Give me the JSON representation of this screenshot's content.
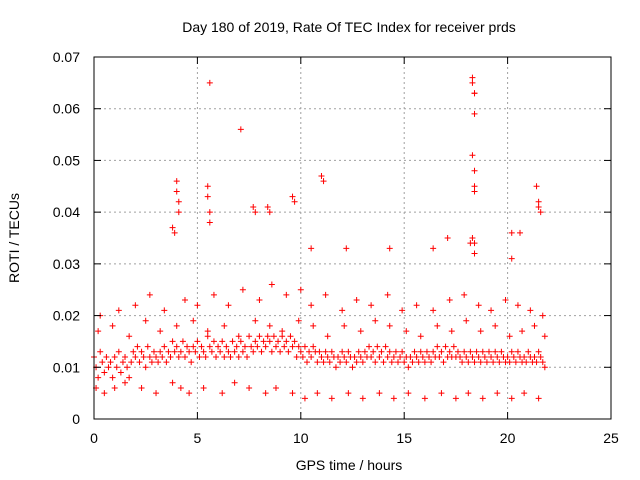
{
  "chart_data": {
    "type": "scatter",
    "title": "Day 180 of 2019, Rate Of TEC Index for receiver prds",
    "xlabel": "GPS time / hours",
    "ylabel": "ROTI / TECUs",
    "xlim": [
      0,
      25
    ],
    "ylim": [
      0,
      0.07
    ],
    "x_ticks": [
      "0",
      "5",
      "10",
      "15",
      "20",
      "25"
    ],
    "y_ticks": [
      "0",
      "0.01",
      "0.02",
      "0.03",
      "0.04",
      "0.05",
      "0.06",
      "0.07"
    ],
    "grid": true,
    "marker": "+",
    "series": [
      {
        "color": "#ff0000",
        "x": [
          0.0,
          0.1,
          0.2,
          0.3,
          0.4,
          0.5,
          0.6,
          0.7,
          0.8,
          0.9,
          1.0,
          1.1,
          1.2,
          1.3,
          1.4,
          1.5,
          1.6,
          1.7,
          1.8,
          1.9,
          2.0,
          2.1,
          2.2,
          2.3,
          2.4,
          2.5,
          2.6,
          2.7,
          2.8,
          2.9,
          3.0,
          3.1,
          3.2,
          3.3,
          3.4,
          3.5,
          3.6,
          3.7,
          3.8,
          3.9,
          4.0,
          4.1,
          4.2,
          4.3,
          4.4,
          4.5,
          4.6,
          4.7,
          4.8,
          4.9,
          5.0,
          5.1,
          5.2,
          5.3,
          5.4,
          5.5,
          5.6,
          5.7,
          5.8,
          5.9,
          6.0,
          6.1,
          6.2,
          6.3,
          6.4,
          6.5,
          6.6,
          6.7,
          6.8,
          6.9,
          7.0,
          7.1,
          7.2,
          7.3,
          7.4,
          7.5,
          7.6,
          7.7,
          7.8,
          7.9,
          8.0,
          8.1,
          8.2,
          8.3,
          8.4,
          8.5,
          8.6,
          8.7,
          8.8,
          8.9,
          9.0,
          9.1,
          9.2,
          9.3,
          9.4,
          9.5,
          9.6,
          9.7,
          9.8,
          9.9,
          10.0,
          10.1,
          10.2,
          10.3,
          10.4,
          10.5,
          10.6,
          10.7,
          10.8,
          10.9,
          11.0,
          11.1,
          11.2,
          11.3,
          11.4,
          11.5,
          11.6,
          11.7,
          11.8,
          11.9,
          12.0,
          12.1,
          12.2,
          12.3,
          12.4,
          12.5,
          12.6,
          12.7,
          12.8,
          12.9,
          13.0,
          13.1,
          13.2,
          13.3,
          13.4,
          13.5,
          13.6,
          13.7,
          13.8,
          13.9,
          14.0,
          14.1,
          14.2,
          14.3,
          14.4,
          14.5,
          14.6,
          14.7,
          14.8,
          14.9,
          15.0,
          15.1,
          15.2,
          15.3,
          15.4,
          15.5,
          15.6,
          15.7,
          15.8,
          15.9,
          16.0,
          16.1,
          16.2,
          16.3,
          16.4,
          16.5,
          16.6,
          16.7,
          16.8,
          16.9,
          17.0,
          17.1,
          17.2,
          17.3,
          17.4,
          17.5,
          17.6,
          17.7,
          17.8,
          17.9,
          18.0,
          18.1,
          18.2,
          18.3,
          18.4,
          18.5,
          18.6,
          18.7,
          18.8,
          18.9,
          19.0,
          19.1,
          19.2,
          19.3,
          19.4,
          19.5,
          19.6,
          19.7,
          19.8,
          19.9,
          20.0,
          20.1,
          20.2,
          20.3,
          20.4,
          20.5,
          20.6,
          20.7,
          20.8,
          20.9,
          21.0,
          21.1,
          21.2,
          21.3,
          21.4,
          21.5,
          21.6,
          21.7,
          21.8,
          0.1,
          0.5,
          1.0,
          1.5,
          2.3,
          3.0,
          3.8,
          4.2,
          4.6,
          5.3,
          6.2,
          6.8,
          7.5,
          8.3,
          8.8,
          9.6,
          10.2,
          10.8,
          11.5,
          12.3,
          13.0,
          13.8,
          14.5,
          15.2,
          16.0,
          16.8,
          17.5,
          18.1,
          18.8,
          19.5,
          20.2,
          20.8,
          21.5,
          0.3,
          1.2,
          2.0,
          2.7,
          3.4,
          4.4,
          5.0,
          5.8,
          6.5,
          7.2,
          8.0,
          8.6,
          9.3,
          10.0,
          10.5,
          11.2,
          12.0,
          12.7,
          13.4,
          14.2,
          14.9,
          15.6,
          16.4,
          17.2,
          17.9,
          18.6,
          19.2,
          19.9,
          20.5,
          21.1,
          21.7,
          0.2,
          0.9,
          1.7,
          2.5,
          3.2,
          4.0,
          4.8,
          5.5,
          6.3,
          7.0,
          7.8,
          8.5,
          9.1,
          9.9,
          10.6,
          11.3,
          12.1,
          12.9,
          13.6,
          14.3,
          15.1,
          15.8,
          16.6,
          17.3,
          18.0,
          18.7,
          19.4,
          20.1,
          20.7,
          21.3,
          21.8,
          4.0,
          4.0,
          4.1,
          4.1,
          5.5,
          5.5,
          5.6,
          5.6,
          7.7,
          7.8,
          8.4,
          8.5,
          9.6,
          9.7,
          11.0,
          11.1,
          18.3,
          18.3,
          18.4,
          18.4,
          18.4,
          18.3,
          18.4,
          18.4,
          18.4,
          21.4,
          21.5,
          21.5,
          21.6,
          5.6,
          7.1,
          18.2,
          18.3,
          18.4,
          20.2,
          20.6,
          14.3,
          3.8,
          3.9,
          10.5,
          12.2,
          16.4,
          17.1,
          18.4,
          20.2
        ],
        "y": [
          0.012,
          0.01,
          0.008,
          0.013,
          0.011,
          0.009,
          0.012,
          0.01,
          0.011,
          0.008,
          0.012,
          0.01,
          0.013,
          0.009,
          0.011,
          0.012,
          0.01,
          0.008,
          0.011,
          0.013,
          0.012,
          0.014,
          0.011,
          0.013,
          0.012,
          0.01,
          0.014,
          0.012,
          0.011,
          0.013,
          0.012,
          0.011,
          0.013,
          0.012,
          0.014,
          0.011,
          0.013,
          0.012,
          0.015,
          0.013,
          0.014,
          0.012,
          0.013,
          0.015,
          0.012,
          0.014,
          0.013,
          0.011,
          0.014,
          0.013,
          0.015,
          0.012,
          0.014,
          0.013,
          0.012,
          0.016,
          0.014,
          0.013,
          0.015,
          0.012,
          0.014,
          0.013,
          0.015,
          0.012,
          0.014,
          0.013,
          0.012,
          0.015,
          0.013,
          0.014,
          0.012,
          0.015,
          0.013,
          0.014,
          0.012,
          0.016,
          0.014,
          0.013,
          0.015,
          0.014,
          0.016,
          0.013,
          0.015,
          0.014,
          0.016,
          0.015,
          0.013,
          0.016,
          0.014,
          0.015,
          0.013,
          0.016,
          0.014,
          0.015,
          0.013,
          0.016,
          0.014,
          0.015,
          0.012,
          0.014,
          0.013,
          0.012,
          0.014,
          0.011,
          0.013,
          0.012,
          0.014,
          0.013,
          0.011,
          0.013,
          0.012,
          0.011,
          0.013,
          0.012,
          0.011,
          0.013,
          0.012,
          0.01,
          0.012,
          0.011,
          0.013,
          0.012,
          0.011,
          0.013,
          0.012,
          0.01,
          0.012,
          0.011,
          0.013,
          0.012,
          0.011,
          0.013,
          0.012,
          0.014,
          0.012,
          0.013,
          0.011,
          0.014,
          0.012,
          0.013,
          0.011,
          0.014,
          0.012,
          0.013,
          0.011,
          0.012,
          0.013,
          0.011,
          0.012,
          0.013,
          0.011,
          0.012,
          0.01,
          0.012,
          0.011,
          0.013,
          0.012,
          0.011,
          0.013,
          0.012,
          0.011,
          0.013,
          0.012,
          0.011,
          0.013,
          0.012,
          0.014,
          0.012,
          0.013,
          0.011,
          0.014,
          0.012,
          0.013,
          0.012,
          0.014,
          0.012,
          0.013,
          0.012,
          0.011,
          0.013,
          0.012,
          0.011,
          0.013,
          0.012,
          0.011,
          0.013,
          0.012,
          0.011,
          0.013,
          0.012,
          0.011,
          0.013,
          0.012,
          0.011,
          0.013,
          0.012,
          0.011,
          0.013,
          0.012,
          0.011,
          0.012,
          0.011,
          0.013,
          0.012,
          0.011,
          0.013,
          0.012,
          0.011,
          0.012,
          0.011,
          0.013,
          0.012,
          0.011,
          0.012,
          0.011,
          0.013,
          0.012,
          0.011,
          0.01,
          0.006,
          0.005,
          0.006,
          0.007,
          0.006,
          0.005,
          0.007,
          0.006,
          0.005,
          0.006,
          0.005,
          0.007,
          0.006,
          0.005,
          0.006,
          0.005,
          0.004,
          0.005,
          0.004,
          0.005,
          0.004,
          0.005,
          0.004,
          0.005,
          0.004,
          0.005,
          0.004,
          0.005,
          0.004,
          0.005,
          0.004,
          0.005,
          0.004,
          0.02,
          0.021,
          0.022,
          0.024,
          0.021,
          0.023,
          0.022,
          0.024,
          0.022,
          0.025,
          0.023,
          0.026,
          0.024,
          0.025,
          0.022,
          0.024,
          0.021,
          0.023,
          0.022,
          0.024,
          0.021,
          0.022,
          0.021,
          0.023,
          0.024,
          0.022,
          0.021,
          0.023,
          0.022,
          0.021,
          0.02,
          0.017,
          0.018,
          0.016,
          0.019,
          0.017,
          0.018,
          0.019,
          0.017,
          0.018,
          0.016,
          0.019,
          0.018,
          0.017,
          0.019,
          0.018,
          0.016,
          0.018,
          0.017,
          0.019,
          0.018,
          0.017,
          0.016,
          0.018,
          0.017,
          0.019,
          0.017,
          0.018,
          0.016,
          0.017,
          0.018,
          0.016,
          0.046,
          0.044,
          0.042,
          0.04,
          0.045,
          0.043,
          0.04,
          0.038,
          0.041,
          0.04,
          0.041,
          0.04,
          0.043,
          0.042,
          0.047,
          0.046,
          0.066,
          0.065,
          0.063,
          0.063,
          0.059,
          0.051,
          0.048,
          0.045,
          0.044,
          0.045,
          0.042,
          0.041,
          0.04,
          0.065,
          0.056,
          0.034,
          0.035,
          0.032,
          0.036,
          0.036,
          0.033,
          0.037,
          0.036,
          0.033,
          0.033,
          0.033,
          0.035,
          0.034,
          0.031
        ]
      }
    ]
  }
}
